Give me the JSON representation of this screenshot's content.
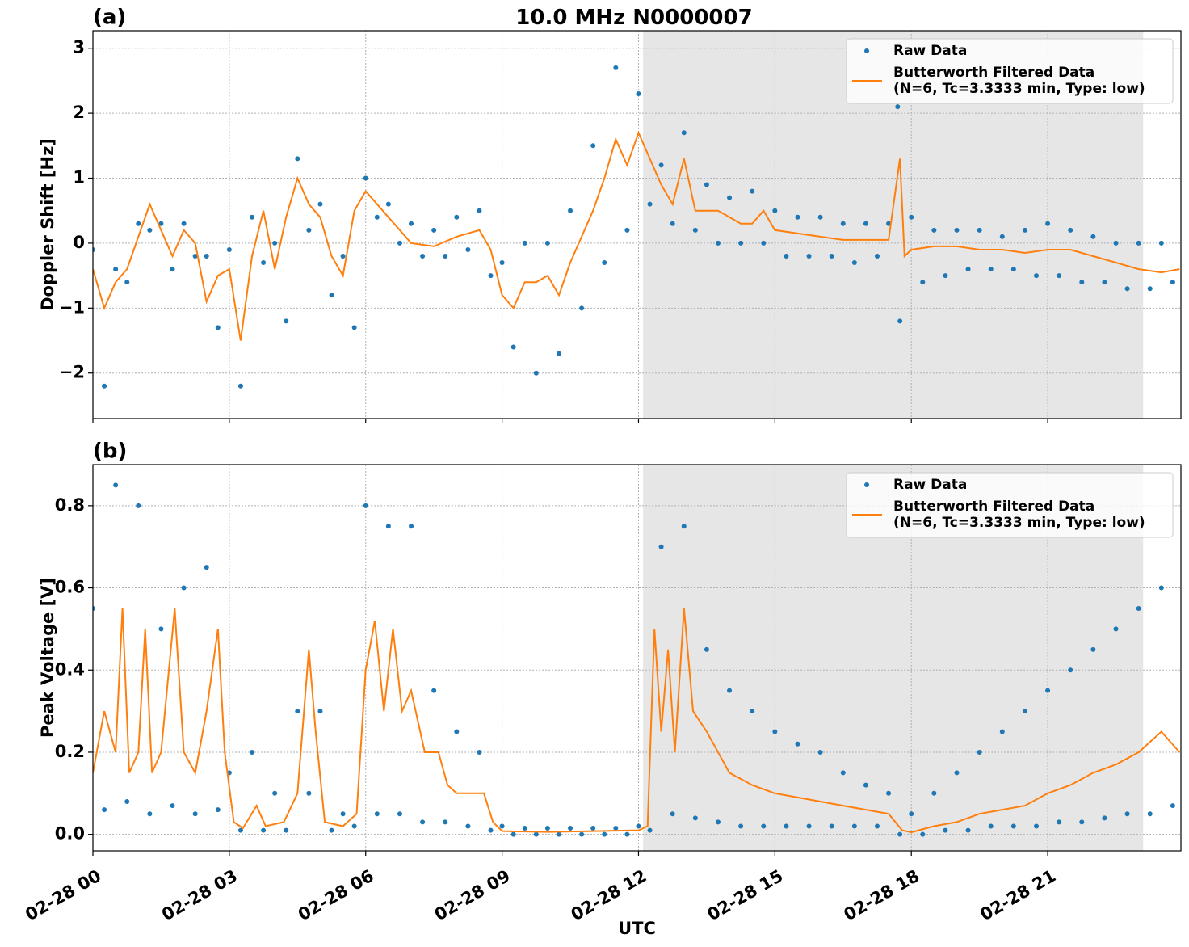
{
  "chart_data": [
    {
      "type": "scatter",
      "title": "10.0 MHz N0000007",
      "panel_label": "(a)",
      "ylabel": "Doppler Shift [Hz]",
      "xlim": [
        0,
        23.93
      ],
      "ylim": [
        -2.7,
        3.27
      ],
      "xticks": [
        0,
        3,
        6,
        9,
        12,
        15,
        18,
        21
      ],
      "yticks": [
        {
          "value": -2,
          "label": "−2"
        },
        {
          "value": -1,
          "label": "−1"
        },
        0,
        1,
        2,
        3
      ],
      "grid": true,
      "legend": "upper right",
      "shaded_span": [
        12.1,
        23.1
      ],
      "shade_color": "#e6e6e6",
      "series": [
        {
          "name": "Raw Data",
          "mode": "markers",
          "color": "#1f77b4",
          "x": [
            0,
            0.25,
            0.5,
            0.75,
            1,
            1.25,
            1.5,
            1.75,
            2,
            2.25,
            2.5,
            2.75,
            3,
            3.25,
            3.5,
            3.75,
            4,
            4.25,
            4.5,
            4.75,
            5,
            5.25,
            5.5,
            5.75,
            6,
            6.25,
            6.5,
            6.75,
            7,
            7.25,
            7.5,
            7.75,
            8,
            8.25,
            8.5,
            8.75,
            9,
            9.25,
            9.5,
            9.75,
            10,
            10.25,
            10.5,
            10.75,
            11,
            11.25,
            11.5,
            11.75,
            12,
            12.25,
            12.5,
            12.75,
            13,
            13.25,
            13.5,
            13.75,
            14,
            14.25,
            14.5,
            14.75,
            15,
            15.25,
            15.5,
            15.75,
            16,
            16.25,
            16.5,
            16.75,
            17,
            17.25,
            17.5,
            17.7,
            17.75,
            18,
            18.25,
            18.5,
            18.75,
            19,
            19.25,
            19.5,
            19.75,
            20,
            20.25,
            20.5,
            20.75,
            21,
            21.25,
            21.5,
            21.75,
            22,
            22.25,
            22.5,
            22.75,
            23,
            23.25,
            23.5,
            23.75
          ],
          "values": [
            -0.1,
            -2.2,
            -0.4,
            -0.6,
            0.3,
            0.2,
            0.3,
            -0.4,
            0.3,
            -0.2,
            -0.2,
            -1.3,
            -0.1,
            -2.2,
            0.4,
            -0.3,
            0.0,
            -1.2,
            1.3,
            0.2,
            0.6,
            -0.8,
            -0.2,
            -1.3,
            1.0,
            0.4,
            0.6,
            0.0,
            0.3,
            -0.2,
            0.2,
            -0.2,
            0.4,
            -0.1,
            0.5,
            -0.5,
            -0.3,
            -1.6,
            0.0,
            -2.0,
            0.0,
            -1.7,
            0.5,
            -1.0,
            1.5,
            -0.3,
            2.7,
            0.2,
            2.3,
            0.6,
            1.2,
            0.3,
            1.7,
            0.2,
            0.9,
            0.0,
            0.7,
            0.0,
            0.8,
            0.0,
            0.5,
            -0.2,
            0.4,
            -0.2,
            0.4,
            -0.2,
            0.3,
            -0.3,
            0.3,
            -0.2,
            0.3,
            2.1,
            -1.2,
            0.4,
            -0.6,
            0.2,
            -0.5,
            0.2,
            -0.4,
            0.2,
            -0.4,
            0.1,
            -0.4,
            0.2,
            -0.5,
            0.3,
            -0.5,
            0.2,
            -0.6,
            0.1,
            -0.6,
            0.0,
            -0.7,
            0.0,
            -0.7,
            0.0,
            -0.6
          ]
        },
        {
          "name": "Butterworth Filtered Data\n(N=6, Tc=3.3333 min, Type: low)",
          "mode": "line",
          "color": "#ff7f0e",
          "x": [
            0,
            0.25,
            0.5,
            0.75,
            1,
            1.25,
            1.5,
            1.75,
            2,
            2.25,
            2.5,
            2.75,
            3,
            3.25,
            3.5,
            3.75,
            4,
            4.25,
            4.5,
            4.75,
            5,
            5.25,
            5.5,
            5.75,
            6,
            6.25,
            6.5,
            6.75,
            7,
            7.5,
            8,
            8.5,
            8.75,
            9,
            9.25,
            9.5,
            9.75,
            10,
            10.25,
            10.5,
            10.75,
            11,
            11.25,
            11.5,
            11.75,
            12,
            12.25,
            12.5,
            12.75,
            13,
            13.25,
            13.5,
            13.75,
            14,
            14.25,
            14.5,
            14.75,
            15,
            15.5,
            16,
            16.5,
            17,
            17.5,
            17.75,
            17.85,
            18,
            18.5,
            19,
            19.5,
            20,
            20.5,
            21,
            21.5,
            22,
            22.5,
            23,
            23.5,
            23.9
          ],
          "values": [
            -0.4,
            -1.0,
            -0.6,
            -0.4,
            0.1,
            0.6,
            0.2,
            -0.2,
            0.2,
            0.0,
            -0.9,
            -0.5,
            -0.4,
            -1.5,
            -0.2,
            0.5,
            -0.4,
            0.4,
            1.0,
            0.6,
            0.4,
            -0.2,
            -0.5,
            0.5,
            0.8,
            0.6,
            0.4,
            0.2,
            0.0,
            -0.05,
            0.1,
            0.2,
            -0.1,
            -0.8,
            -1.0,
            -0.6,
            -0.6,
            -0.5,
            -0.8,
            -0.3,
            0.1,
            0.5,
            1.0,
            1.6,
            1.2,
            1.7,
            1.3,
            0.9,
            0.6,
            1.3,
            0.5,
            0.5,
            0.5,
            0.4,
            0.3,
            0.3,
            0.5,
            0.2,
            0.15,
            0.1,
            0.05,
            0.05,
            0.05,
            1.3,
            -0.2,
            -0.1,
            -0.05,
            -0.05,
            -0.1,
            -0.1,
            -0.15,
            -0.1,
            -0.1,
            -0.2,
            -0.3,
            -0.4,
            -0.45,
            -0.4
          ]
        }
      ]
    },
    {
      "type": "scatter",
      "panel_label": "(b)",
      "ylabel": "Peak Voltage [V]",
      "xlabel": "UTC",
      "xlim": [
        0,
        23.93
      ],
      "ylim": [
        -0.04,
        0.9
      ],
      "xticks": [
        {
          "value": 0,
          "label": "02-28 00"
        },
        {
          "value": 3,
          "label": "02-28 03"
        },
        {
          "value": 6,
          "label": "02-28 06"
        },
        {
          "value": 9,
          "label": "02-28 09"
        },
        {
          "value": 12,
          "label": "02-28 12"
        },
        {
          "value": 15,
          "label": "02-28 15"
        },
        {
          "value": 18,
          "label": "02-28 18"
        },
        {
          "value": 21,
          "label": "02-28 21"
        }
      ],
      "yticks": [
        {
          "value": 0,
          "label": "0.0"
        },
        0.2,
        0.4,
        0.6,
        0.8
      ],
      "grid": true,
      "legend": "upper right",
      "shaded_span": [
        12.1,
        23.1
      ],
      "shade_color": "#e6e6e6",
      "series": [
        {
          "name": "Raw Data",
          "mode": "markers",
          "color": "#1f77b4",
          "x": [
            0,
            0.25,
            0.5,
            0.75,
            1,
            1.25,
            1.5,
            1.75,
            2,
            2.25,
            2.5,
            2.75,
            3,
            3.25,
            3.5,
            3.75,
            4,
            4.25,
            4.5,
            4.75,
            5,
            5.25,
            5.5,
            5.75,
            6,
            6.25,
            6.5,
            6.75,
            7,
            7.25,
            7.5,
            7.75,
            8,
            8.25,
            8.5,
            8.75,
            9,
            9.25,
            9.5,
            9.75,
            10,
            10.25,
            10.5,
            10.75,
            11,
            11.25,
            11.5,
            11.75,
            12,
            12.25,
            12.5,
            12.75,
            13,
            13.25,
            13.5,
            13.75,
            14,
            14.25,
            14.5,
            14.75,
            15,
            15.25,
            15.5,
            15.75,
            16,
            16.25,
            16.5,
            16.75,
            17,
            17.25,
            17.5,
            17.75,
            18,
            18.25,
            18.5,
            18.75,
            19,
            19.25,
            19.5,
            19.75,
            20,
            20.25,
            20.5,
            20.75,
            21,
            21.25,
            21.5,
            21.75,
            22,
            22.25,
            22.5,
            22.75,
            23,
            23.25,
            23.5,
            23.75
          ],
          "values": [
            0.55,
            0.06,
            0.85,
            0.08,
            0.8,
            0.05,
            0.5,
            0.07,
            0.6,
            0.05,
            0.65,
            0.06,
            0.15,
            0.01,
            0.2,
            0.01,
            0.1,
            0.01,
            0.3,
            0.1,
            0.3,
            0.01,
            0.05,
            0.02,
            0.8,
            0.05,
            0.75,
            0.05,
            0.75,
            0.03,
            0.35,
            0.03,
            0.25,
            0.02,
            0.2,
            0.01,
            0.02,
            0.0,
            0.015,
            0.0,
            0.015,
            0.0,
            0.015,
            0.0,
            0.015,
            0.0,
            0.015,
            0.0,
            0.02,
            0.01,
            0.7,
            0.05,
            0.75,
            0.04,
            0.45,
            0.03,
            0.35,
            0.02,
            0.3,
            0.02,
            0.25,
            0.02,
            0.22,
            0.02,
            0.2,
            0.02,
            0.15,
            0.02,
            0.12,
            0.02,
            0.1,
            0.0,
            0.05,
            0.0,
            0.1,
            0.01,
            0.15,
            0.01,
            0.2,
            0.02,
            0.25,
            0.02,
            0.3,
            0.02,
            0.35,
            0.03,
            0.4,
            0.03,
            0.45,
            0.04,
            0.5,
            0.05,
            0.55,
            0.05,
            0.6,
            0.07
          ]
        },
        {
          "name": "Butterworth Filtered Data\n(N=6, Tc=3.3333 min, Type: low)",
          "mode": "line",
          "color": "#ff7f0e",
          "x": [
            0,
            0.25,
            0.5,
            0.65,
            0.8,
            1.0,
            1.15,
            1.3,
            1.5,
            1.8,
            2.0,
            2.25,
            2.5,
            2.75,
            2.9,
            3.1,
            3.3,
            3.6,
            3.8,
            4.2,
            4.5,
            4.75,
            4.9,
            5.1,
            5.5,
            5.8,
            6.0,
            6.2,
            6.4,
            6.6,
            6.8,
            7.0,
            7.3,
            7.6,
            7.8,
            8.0,
            8.3,
            8.6,
            8.8,
            9.0,
            10,
            11,
            12,
            12.2,
            12.35,
            12.5,
            12.65,
            12.8,
            13.0,
            13.2,
            13.5,
            14.0,
            14.5,
            15.0,
            15.5,
            16.0,
            16.5,
            17.0,
            17.5,
            17.8,
            18.0,
            18.5,
            19.0,
            19.5,
            20.0,
            20.5,
            21.0,
            21.5,
            22.0,
            22.5,
            23.0,
            23.5,
            23.9
          ],
          "values": [
            0.15,
            0.3,
            0.2,
            0.55,
            0.15,
            0.2,
            0.5,
            0.15,
            0.2,
            0.55,
            0.2,
            0.15,
            0.3,
            0.5,
            0.2,
            0.03,
            0.015,
            0.07,
            0.02,
            0.03,
            0.1,
            0.45,
            0.25,
            0.03,
            0.02,
            0.05,
            0.4,
            0.52,
            0.3,
            0.5,
            0.3,
            0.35,
            0.2,
            0.2,
            0.12,
            0.1,
            0.1,
            0.1,
            0.03,
            0.008,
            0.006,
            0.008,
            0.01,
            0.02,
            0.5,
            0.25,
            0.45,
            0.2,
            0.55,
            0.3,
            0.25,
            0.15,
            0.12,
            0.1,
            0.09,
            0.08,
            0.07,
            0.06,
            0.05,
            0.01,
            0.005,
            0.02,
            0.03,
            0.05,
            0.06,
            0.07,
            0.1,
            0.12,
            0.15,
            0.17,
            0.2,
            0.25,
            0.2
          ]
        }
      ]
    }
  ]
}
